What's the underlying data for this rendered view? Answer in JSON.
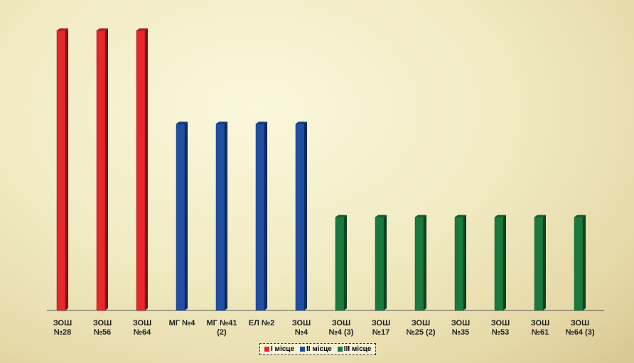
{
  "chart_data": {
    "type": "bar",
    "categories": [
      "ЗОШ\n№28",
      "ЗОШ\n№56",
      "ЗОШ\n№64",
      "МГ №4",
      "МГ №41\n(2)",
      "ЕЛ №2",
      "ЗОШ\n№4",
      "ЗОШ\n№4 (3)",
      "ЗОШ\n№17",
      "ЗОШ\n№25 (2)",
      "ЗОШ\n№35",
      "ЗОШ\n№53",
      "ЗОШ\n№61",
      "ЗОШ\n№64 (3)"
    ],
    "series": [
      {
        "name": "I місце",
        "color": "#e8272a",
        "values": [
          3,
          3,
          3,
          null,
          null,
          null,
          null,
          null,
          null,
          null,
          null,
          null,
          null,
          null
        ]
      },
      {
        "name": "II місце",
        "color": "#1f4ea3",
        "values": [
          null,
          null,
          null,
          2,
          2,
          2,
          2,
          null,
          null,
          null,
          null,
          null,
          null,
          null
        ]
      },
      {
        "name": "III місце",
        "color": "#1a7a3e",
        "values": [
          null,
          null,
          null,
          null,
          null,
          null,
          null,
          1,
          1,
          1,
          1,
          1,
          1,
          1
        ]
      }
    ]
  }
}
